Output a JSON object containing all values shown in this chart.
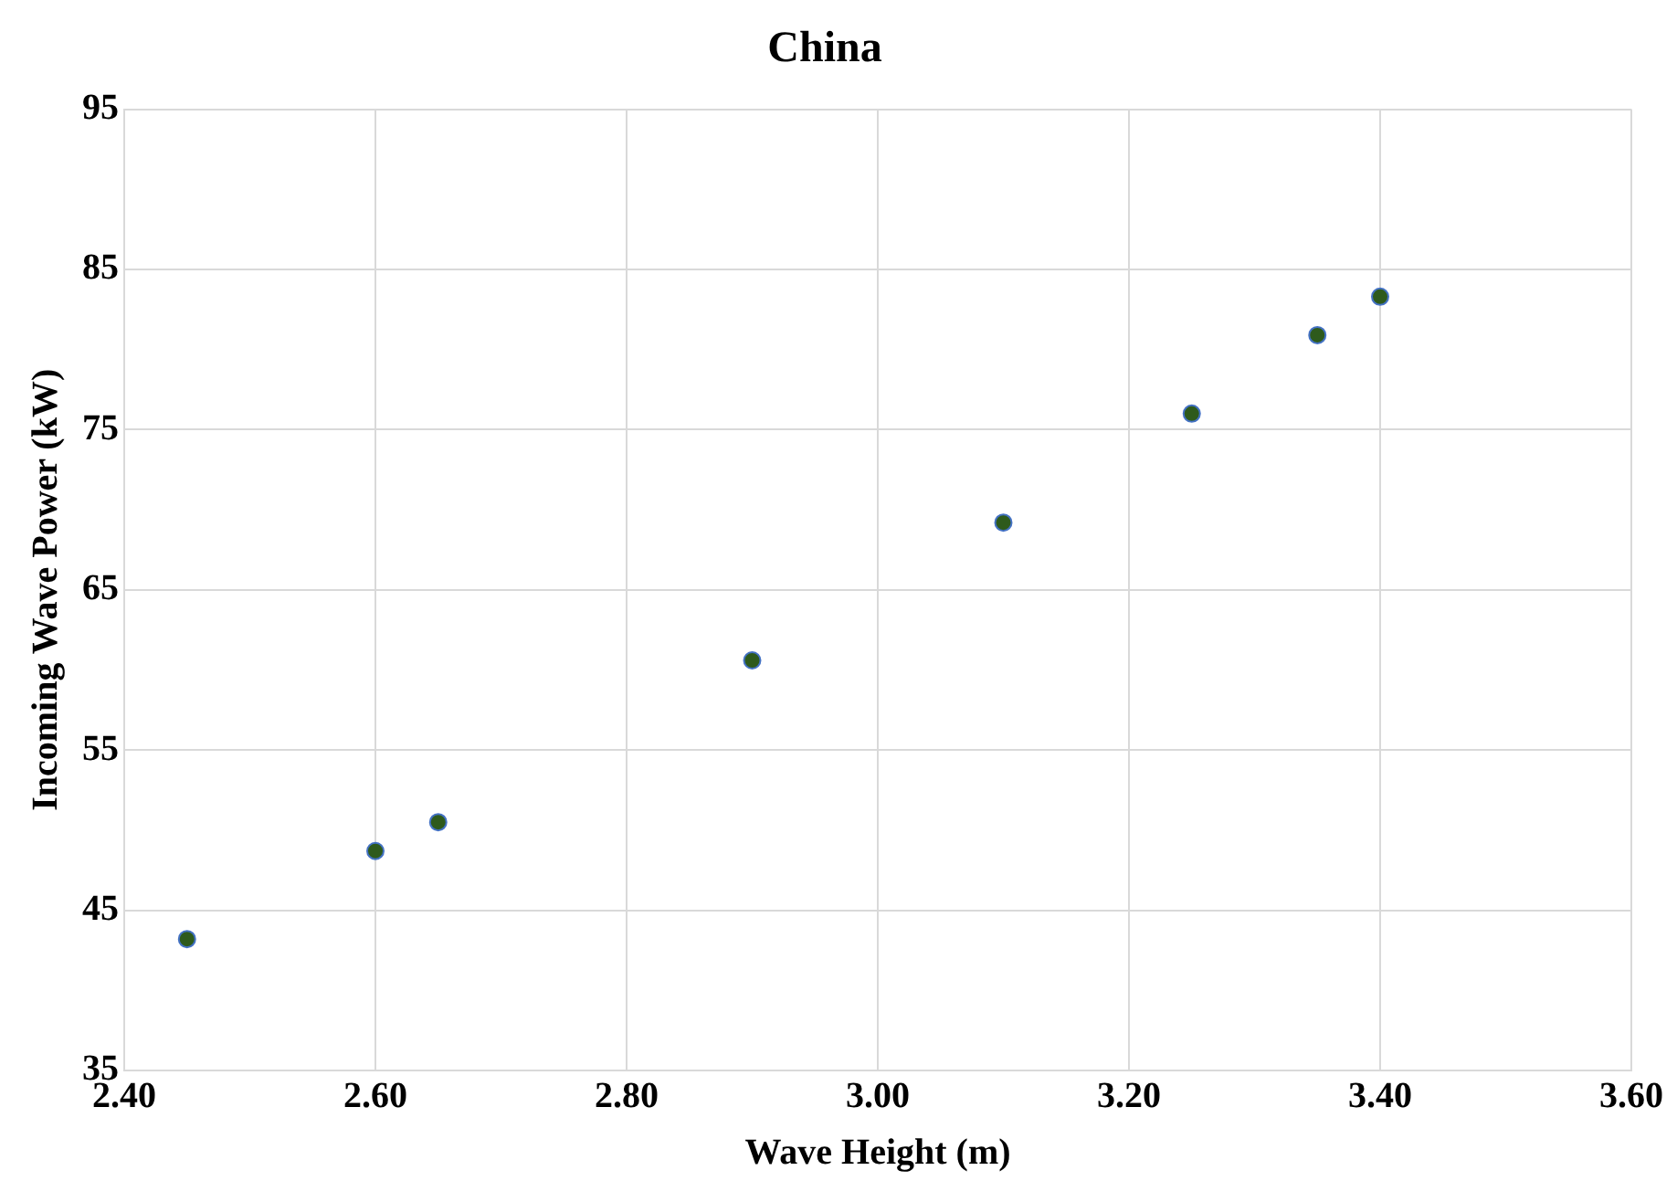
{
  "chart_data": {
    "type": "scatter",
    "title": "China",
    "xlabel": "Wave Height (m)",
    "ylabel": "Incoming Wave Power (kW)",
    "x": [
      2.45,
      2.6,
      2.65,
      2.9,
      3.1,
      3.25,
      3.35,
      3.4
    ],
    "values": [
      43.2,
      48.7,
      50.5,
      60.6,
      69.2,
      76.0,
      80.9,
      83.3
    ],
    "color": "#2e5a1c",
    "marker": "circle",
    "xlim": [
      2.4,
      3.6
    ],
    "xticks": [
      {
        "value": 2.4,
        "label": "2.40"
      },
      {
        "value": 2.6,
        "label": "2.60"
      },
      {
        "value": 2.8,
        "label": "2.80"
      },
      {
        "value": 3.0,
        "label": "3.00"
      },
      {
        "value": 3.2,
        "label": "3.20"
      },
      {
        "value": 3.4,
        "label": "3.40"
      },
      {
        "value": 3.6,
        "label": "3.60"
      }
    ],
    "ylim": [
      35,
      95
    ],
    "yticks": [
      35,
      45,
      55,
      65,
      75,
      85,
      95
    ],
    "grid": true
  }
}
